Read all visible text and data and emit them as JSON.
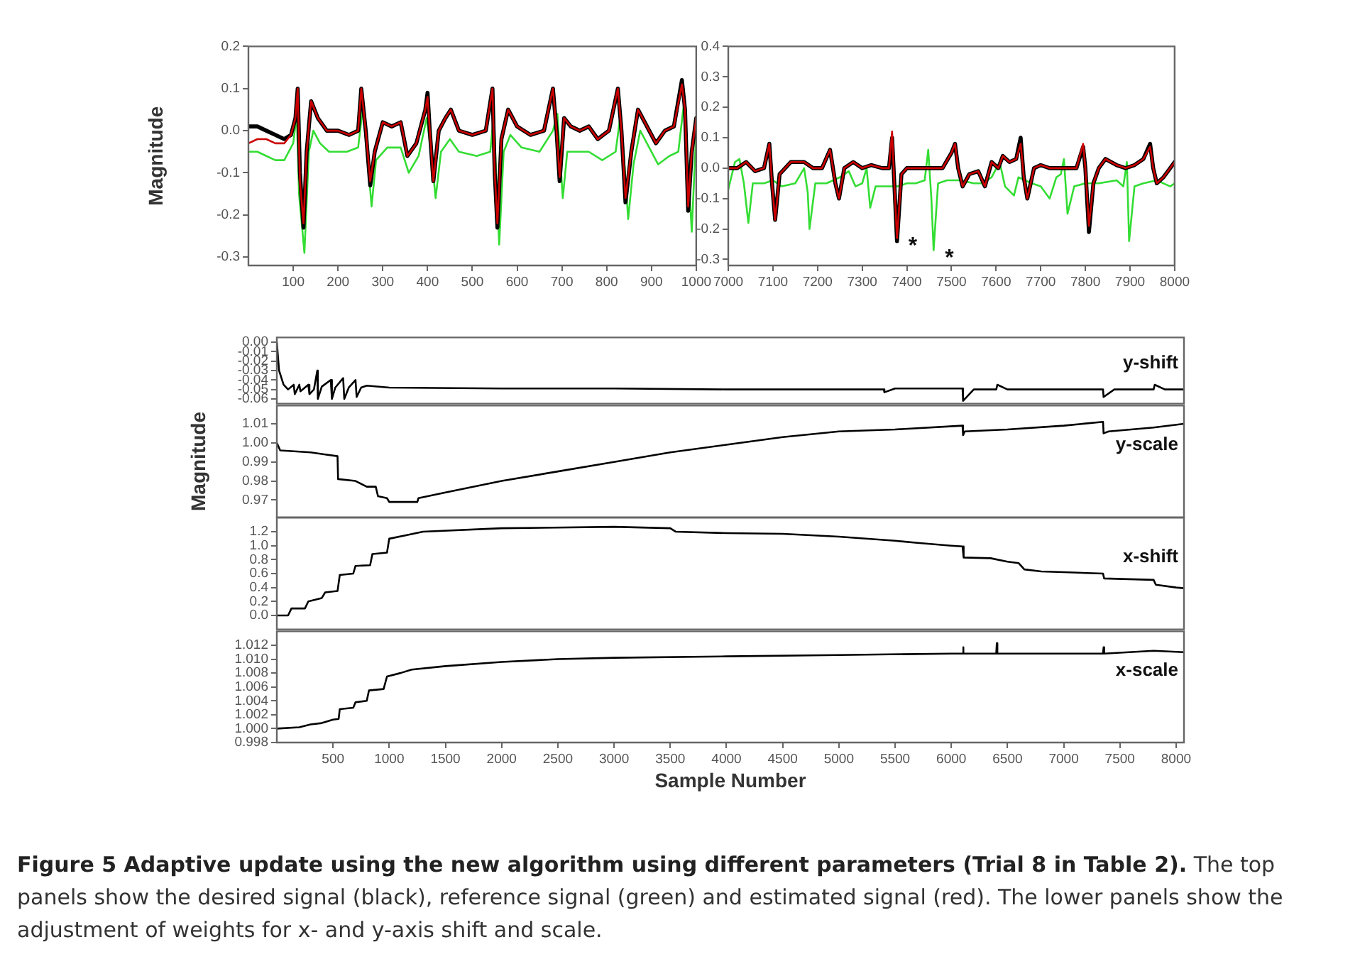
{
  "chart_data": [
    {
      "type": "line",
      "ylabel": "Magnitude",
      "marker": "none",
      "xlim": [
        0,
        1000
      ],
      "xticks": [
        100,
        200,
        300,
        400,
        500,
        600,
        700,
        800,
        900,
        1000
      ],
      "ylim": [
        -0.32,
        0.2
      ],
      "yticks": [
        -0.3,
        -0.2,
        -0.1,
        {
          "value": 0,
          "label": "0.0"
        },
        0.1,
        0.2
      ],
      "series": [
        {
          "color": "#33dd33",
          "x": [
            0,
            20,
            40,
            60,
            80,
            100,
            108,
            113,
            125,
            135,
            145,
            160,
            180,
            220,
            245,
            255,
            265,
            275,
            285,
            310,
            340,
            358,
            380,
            398,
            408,
            418,
            430,
            450,
            470,
            510,
            540,
            548,
            553,
            560,
            570,
            585,
            610,
            650,
            680,
            690,
            695,
            702,
            712,
            730,
            760,
            790,
            820,
            830,
            838,
            848,
            860,
            875,
            895,
            915,
            940,
            960,
            972,
            980,
            990,
            1000
          ],
          "values": [
            -0.05,
            -0.05,
            -0.06,
            -0.07,
            -0.07,
            -0.03,
            0.04,
            -0.15,
            -0.29,
            -0.05,
            0.0,
            -0.03,
            -0.05,
            -0.05,
            -0.04,
            0.05,
            -0.05,
            -0.18,
            -0.07,
            -0.04,
            -0.04,
            -0.1,
            -0.06,
            0.03,
            -0.05,
            -0.16,
            -0.05,
            -0.02,
            -0.05,
            -0.06,
            -0.05,
            0.04,
            -0.1,
            -0.27,
            -0.05,
            -0.01,
            -0.04,
            -0.05,
            0.0,
            0.04,
            -0.05,
            -0.16,
            -0.05,
            -0.05,
            -0.05,
            -0.07,
            -0.05,
            0.03,
            -0.05,
            -0.21,
            -0.08,
            0.0,
            -0.04,
            -0.08,
            -0.06,
            -0.05,
            0.06,
            -0.05,
            -0.24,
            0.0
          ]
        },
        {
          "color": "#000000",
          "x": [
            0,
            20,
            40,
            60,
            80,
            95,
            105,
            110,
            115,
            123,
            130,
            140,
            155,
            175,
            200,
            225,
            245,
            252,
            262,
            272,
            282,
            300,
            320,
            340,
            355,
            375,
            395,
            400,
            405,
            413,
            425,
            440,
            452,
            470,
            500,
            530,
            545,
            550,
            556,
            565,
            580,
            600,
            630,
            660,
            680,
            688,
            695,
            705,
            720,
            740,
            760,
            780,
            805,
            825,
            833,
            842,
            855,
            870,
            890,
            910,
            930,
            950,
            968,
            975,
            982,
            990,
            1000
          ],
          "values": [
            0.01,
            0.01,
            0.0,
            -0.01,
            -0.02,
            -0.01,
            0.03,
            0.1,
            -0.1,
            -0.23,
            -0.05,
            0.07,
            0.03,
            0.0,
            0.0,
            -0.01,
            0.0,
            0.1,
            0.0,
            -0.13,
            -0.05,
            0.02,
            0.01,
            0.02,
            -0.06,
            -0.03,
            0.05,
            0.09,
            0.0,
            -0.12,
            0.0,
            0.03,
            0.05,
            0.0,
            -0.01,
            0.0,
            0.1,
            -0.1,
            -0.23,
            -0.02,
            0.05,
            0.01,
            -0.01,
            0.0,
            0.1,
            0.0,
            -0.12,
            0.03,
            0.01,
            0.0,
            0.01,
            -0.02,
            0.0,
            0.1,
            0.0,
            -0.17,
            -0.05,
            0.05,
            0.01,
            -0.03,
            0.0,
            0.01,
            0.12,
            0.05,
            -0.19,
            -0.05,
            0.03
          ]
        },
        {
          "color": "#cc0000",
          "x": [
            0,
            20,
            40,
            60,
            80,
            95,
            105,
            110,
            115,
            123,
            130,
            140,
            155,
            175,
            200,
            225,
            245,
            252,
            262,
            272,
            282,
            300,
            320,
            340,
            355,
            375,
            395,
            400,
            405,
            413,
            425,
            440,
            452,
            470,
            500,
            530,
            545,
            550,
            556,
            565,
            580,
            600,
            630,
            660,
            680,
            688,
            695,
            705,
            720,
            740,
            760,
            780,
            805,
            825,
            833,
            842,
            855,
            870,
            890,
            910,
            930,
            950,
            968,
            975,
            982,
            990,
            1000
          ],
          "values": [
            -0.03,
            -0.02,
            -0.02,
            -0.03,
            -0.03,
            -0.01,
            0.03,
            0.1,
            -0.12,
            -0.22,
            -0.05,
            0.07,
            0.03,
            0.0,
            0.0,
            -0.01,
            0.0,
            0.1,
            0.0,
            -0.12,
            -0.05,
            0.02,
            0.01,
            0.02,
            -0.06,
            -0.03,
            0.05,
            0.08,
            0.0,
            -0.12,
            0.0,
            0.03,
            0.05,
            0.0,
            -0.01,
            0.0,
            0.1,
            -0.1,
            -0.22,
            -0.02,
            0.05,
            0.01,
            -0.01,
            0.0,
            0.1,
            0.0,
            -0.11,
            0.03,
            0.01,
            0.0,
            0.01,
            -0.02,
            0.0,
            0.1,
            0.0,
            -0.16,
            -0.05,
            0.05,
            0.01,
            -0.03,
            0.0,
            0.01,
            0.11,
            0.05,
            -0.18,
            -0.05,
            0.03
          ]
        }
      ]
    },
    {
      "type": "line",
      "marker": "none",
      "xlim": [
        7000,
        8000
      ],
      "xticks": [
        7000,
        7100,
        7200,
        7300,
        7400,
        7500,
        7600,
        7700,
        7800,
        7900,
        8000
      ],
      "ylim": [
        -0.32,
        0.4
      ],
      "yticks": [
        -0.3,
        -0.2,
        -0.1,
        {
          "value": 0,
          "label": "0.0"
        },
        0.1,
        0.2,
        0.3,
        0.4
      ],
      "annotations": [
        {
          "text": "*",
          "x": 7378,
          "y": -0.23
        },
        {
          "text": "*",
          "x": 7460,
          "y": -0.27
        }
      ],
      "series": [
        {
          "color": "#33dd33",
          "x": [
            7000,
            7015,
            7025,
            7035,
            7045,
            7055,
            7080,
            7100,
            7120,
            7150,
            7170,
            7178,
            7182,
            7195,
            7220,
            7250,
            7270,
            7285,
            7300,
            7310,
            7318,
            7330,
            7350,
            7380,
            7400,
            7420,
            7440,
            7448,
            7455,
            7460,
            7470,
            7490,
            7520,
            7550,
            7570,
            7590,
            7608,
            7620,
            7640,
            7650,
            7680,
            7700,
            7720,
            7735,
            7745,
            7752,
            7760,
            7775,
            7800,
            7830,
            7870,
            7885,
            7893,
            7898,
            7910,
            7930,
            7960,
            7990,
            8000
          ],
          "values": [
            -0.07,
            0.02,
            0.03,
            -0.05,
            -0.18,
            -0.05,
            -0.05,
            -0.04,
            -0.06,
            -0.05,
            0.0,
            -0.08,
            -0.2,
            -0.05,
            -0.05,
            -0.03,
            -0.01,
            -0.06,
            -0.05,
            0.0,
            -0.13,
            -0.06,
            -0.06,
            -0.06,
            -0.05,
            -0.05,
            -0.04,
            0.06,
            -0.1,
            -0.27,
            -0.05,
            -0.04,
            -0.04,
            -0.05,
            -0.05,
            -0.03,
            0.02,
            -0.06,
            -0.09,
            -0.03,
            -0.05,
            -0.06,
            -0.1,
            -0.03,
            -0.02,
            0.03,
            -0.15,
            -0.06,
            -0.05,
            -0.05,
            -0.04,
            -0.06,
            0.02,
            -0.24,
            -0.06,
            -0.05,
            -0.04,
            -0.06,
            -0.05
          ]
        },
        {
          "color": "#000000",
          "x": [
            7000,
            7020,
            7040,
            7060,
            7080,
            7092,
            7098,
            7105,
            7115,
            7140,
            7170,
            7190,
            7210,
            7228,
            7240,
            7248,
            7260,
            7280,
            7300,
            7320,
            7345,
            7360,
            7367,
            7372,
            7378,
            7388,
            7400,
            7420,
            7440,
            7460,
            7480,
            7500,
            7508,
            7515,
            7525,
            7540,
            7560,
            7575,
            7590,
            7605,
            7615,
            7630,
            7645,
            7655,
            7662,
            7670,
            7685,
            7700,
            7720,
            7740,
            7760,
            7780,
            7795,
            7800,
            7808,
            7818,
            7830,
            7845,
            7870,
            7890,
            7910,
            7930,
            7945,
            7952,
            7960,
            7975,
            7990,
            8000
          ],
          "values": [
            0.0,
            0.0,
            0.02,
            -0.01,
            0.0,
            0.08,
            -0.05,
            -0.17,
            -0.02,
            0.02,
            0.02,
            0.0,
            0.0,
            0.06,
            -0.05,
            -0.1,
            0.0,
            0.02,
            0.0,
            0.01,
            0.0,
            0.0,
            0.1,
            -0.05,
            -0.24,
            -0.02,
            0.0,
            0.0,
            0.0,
            0.0,
            0.0,
            0.05,
            0.08,
            0.0,
            -0.06,
            -0.02,
            -0.01,
            -0.06,
            0.02,
            0.0,
            0.04,
            0.02,
            0.03,
            0.1,
            -0.03,
            -0.1,
            0.0,
            0.01,
            0.0,
            0.0,
            0.0,
            0.0,
            0.07,
            0.0,
            -0.21,
            -0.05,
            0.0,
            0.03,
            0.01,
            0.0,
            0.01,
            0.03,
            0.08,
            0.0,
            -0.05,
            -0.03,
            0.0,
            0.02
          ]
        },
        {
          "color": "#cc0000",
          "x": [
            7000,
            7020,
            7040,
            7060,
            7080,
            7092,
            7098,
            7105,
            7115,
            7140,
            7170,
            7190,
            7210,
            7228,
            7240,
            7248,
            7260,
            7280,
            7300,
            7320,
            7345,
            7360,
            7367,
            7372,
            7378,
            7388,
            7400,
            7420,
            7440,
            7460,
            7480,
            7500,
            7508,
            7515,
            7525,
            7540,
            7560,
            7575,
            7590,
            7605,
            7615,
            7630,
            7645,
            7655,
            7662,
            7670,
            7685,
            7700,
            7720,
            7740,
            7760,
            7780,
            7795,
            7800,
            7808,
            7818,
            7830,
            7845,
            7870,
            7890,
            7910,
            7930,
            7945,
            7952,
            7960,
            7975,
            7990,
            8000
          ],
          "values": [
            0.0,
            0.0,
            0.02,
            -0.01,
            0.0,
            0.08,
            -0.05,
            -0.17,
            -0.02,
            0.02,
            0.02,
            0.0,
            0.0,
            0.06,
            -0.05,
            -0.1,
            0.0,
            0.02,
            0.0,
            0.01,
            0.0,
            0.0,
            0.12,
            -0.05,
            -0.23,
            -0.02,
            0.0,
            0.0,
            0.0,
            0.0,
            0.0,
            0.05,
            0.08,
            0.0,
            -0.06,
            -0.02,
            -0.01,
            -0.06,
            0.02,
            0.0,
            0.04,
            0.02,
            0.03,
            0.08,
            -0.03,
            -0.1,
            0.0,
            0.01,
            0.0,
            0.0,
            0.0,
            0.0,
            0.08,
            0.0,
            -0.19,
            -0.05,
            0.0,
            0.03,
            0.01,
            0.0,
            0.01,
            0.03,
            0.07,
            0.0,
            -0.05,
            -0.03,
            0.0,
            0.02
          ]
        }
      ]
    },
    {
      "type": "line",
      "marker": "none",
      "tick_labels": "y",
      "color": "#000000",
      "annotations": [
        "y-shift"
      ],
      "xlim": [
        0,
        8070
      ],
      "xticks": [
        500,
        1000,
        1500,
        2000,
        2500,
        3000,
        3500,
        4000,
        4500,
        5000,
        5500,
        6000,
        6500,
        7000,
        7500,
        8000
      ],
      "ylim": [
        -0.065,
        0.005
      ],
      "yticks": [
        {
          "value": 0,
          "label": "0.00"
        },
        -0.01,
        -0.02,
        -0.03,
        -0.04,
        -0.05,
        -0.06
      ],
      "x": [
        0,
        20,
        60,
        100,
        150,
        160,
        200,
        210,
        280,
        290,
        330,
        360,
        365,
        400,
        480,
        490,
        520,
        590,
        600,
        640,
        700,
        710,
        750,
        800,
        1000,
        2000,
        3000,
        4000,
        5000,
        5400,
        5405,
        5500,
        6100,
        6105,
        6200,
        6400,
        6410,
        6500,
        6700,
        7350,
        7355,
        7450,
        7800,
        7810,
        7900,
        8070
      ],
      "values": [
        0.0,
        -0.03,
        -0.045,
        -0.05,
        -0.045,
        -0.055,
        -0.045,
        -0.052,
        -0.045,
        -0.055,
        -0.05,
        -0.03,
        -0.06,
        -0.047,
        -0.04,
        -0.06,
        -0.048,
        -0.038,
        -0.06,
        -0.048,
        -0.04,
        -0.058,
        -0.048,
        -0.046,
        -0.048,
        -0.049,
        -0.049,
        -0.05,
        -0.05,
        -0.05,
        -0.053,
        -0.049,
        -0.049,
        -0.062,
        -0.05,
        -0.05,
        -0.045,
        -0.05,
        -0.05,
        -0.05,
        -0.058,
        -0.05,
        -0.05,
        -0.045,
        -0.05,
        -0.05
      ]
    },
    {
      "type": "line",
      "marker": "none",
      "tick_labels": "y",
      "color": "#000000",
      "ylabel": "Magnitude",
      "annotations": [
        "y-scale"
      ],
      "xlim": [
        0,
        8070
      ],
      "xticks": [
        500,
        1000,
        1500,
        2000,
        2500,
        3000,
        3500,
        4000,
        4500,
        5000,
        5500,
        6000,
        6500,
        7000,
        7500,
        8000
      ],
      "ylim": [
        0.961,
        1.0195
      ],
      "yticks": [
        0.97,
        0.98,
        0.99,
        {
          "value": 1,
          "label": "1.00"
        },
        1.01
      ],
      "x": [
        0,
        30,
        300,
        420,
        540,
        545,
        700,
        800,
        880,
        900,
        980,
        1000,
        1100,
        1250,
        1260,
        1500,
        2000,
        2500,
        3000,
        3500,
        4000,
        4500,
        5000,
        5500,
        6100,
        6105,
        6120,
        6500,
        7000,
        7350,
        7355,
        7400,
        7800,
        8070
      ],
      "values": [
        1.0,
        0.996,
        0.995,
        0.994,
        0.993,
        0.981,
        0.98,
        0.977,
        0.977,
        0.972,
        0.971,
        0.969,
        0.969,
        0.969,
        0.971,
        0.974,
        0.98,
        0.985,
        0.99,
        0.995,
        0.999,
        1.003,
        1.006,
        1.007,
        1.009,
        1.004,
        1.006,
        1.007,
        1.009,
        1.011,
        1.005,
        1.006,
        1.008,
        1.01
      ]
    },
    {
      "type": "line",
      "marker": "none",
      "tick_labels": "y",
      "color": "#000000",
      "annotations": [
        "x-shift"
      ],
      "xlim": [
        0,
        8070
      ],
      "xticks": [
        500,
        1000,
        1500,
        2000,
        2500,
        3000,
        3500,
        4000,
        4500,
        5000,
        5500,
        6000,
        6500,
        7000,
        7500,
        8000
      ],
      "ylim": [
        -0.2,
        1.4
      ],
      "yticks": [
        {
          "value": 0,
          "label": "0.0"
        },
        0.2,
        0.4,
        0.6,
        0.8,
        {
          "value": 1,
          "label": "1.0"
        },
        1.2
      ],
      "x": [
        0,
        100,
        130,
        250,
        280,
        400,
        430,
        540,
        560,
        680,
        700,
        830,
        850,
        980,
        1000,
        1150,
        1300,
        2000,
        3000,
        3500,
        3550,
        4000,
        4500,
        5000,
        5500,
        5700,
        6000,
        6100,
        6110,
        6350,
        6500,
        6600,
        6650,
        6800,
        7000,
        7350,
        7360,
        7800,
        7820,
        8000,
        8070
      ],
      "values": [
        0.0,
        0.0,
        0.1,
        0.1,
        0.2,
        0.25,
        0.33,
        0.35,
        0.58,
        0.6,
        0.71,
        0.72,
        0.88,
        0.9,
        1.1,
        1.15,
        1.2,
        1.25,
        1.27,
        1.25,
        1.2,
        1.18,
        1.17,
        1.13,
        1.07,
        1.04,
        1.0,
        0.99,
        0.83,
        0.82,
        0.77,
        0.75,
        0.66,
        0.63,
        0.62,
        0.6,
        0.53,
        0.51,
        0.44,
        0.4,
        0.39
      ]
    },
    {
      "type": "line",
      "marker": "none",
      "color": "#000000",
      "xlabel": "Sample Number",
      "annotations": [
        "x-scale",
        "Figure 5 Adaptive update using the new algorithm using different parameters (Trial 8 in Table 2).",
        "The top panels show the desired signal (black), reference signal (green) and estimated signal (red). The lower panels show the adjustment of weights for x- and y-axis shift and scale."
      ],
      "xlim": [
        0,
        8070
      ],
      "xticks": [
        500,
        1000,
        1500,
        2000,
        2500,
        3000,
        3500,
        4000,
        4500,
        5000,
        5500,
        6000,
        6500,
        7000,
        7500,
        8000
      ],
      "ylim": [
        0.998,
        1.014
      ],
      "yticks": [
        0.998,
        {
          "value": 1,
          "label": "1.000"
        },
        1.002,
        1.004,
        1.006,
        1.008,
        {
          "value": 1.01,
          "label": "1.010"
        },
        1.012
      ],
      "x": [
        0,
        200,
        300,
        400,
        500,
        550,
        560,
        680,
        700,
        800,
        820,
        950,
        980,
        1100,
        1200,
        1500,
        2000,
        2500,
        3000,
        4000,
        5000,
        6000,
        6100,
        6105,
        6110,
        6400,
        6405,
        6410,
        7350,
        7355,
        7360,
        7800,
        8070
      ],
      "values": [
        1.0,
        1.0002,
        1.0006,
        1.0008,
        1.0013,
        1.0014,
        1.0028,
        1.003,
        1.0038,
        1.004,
        1.0055,
        1.0057,
        1.0075,
        1.008,
        1.0085,
        1.009,
        1.0096,
        1.01,
        1.0102,
        1.0104,
        1.0106,
        1.0108,
        1.0108,
        1.0117,
        1.0108,
        1.0108,
        1.0123,
        1.0108,
        1.0108,
        1.0117,
        1.0108,
        1.0112,
        1.011
      ]
    }
  ]
}
